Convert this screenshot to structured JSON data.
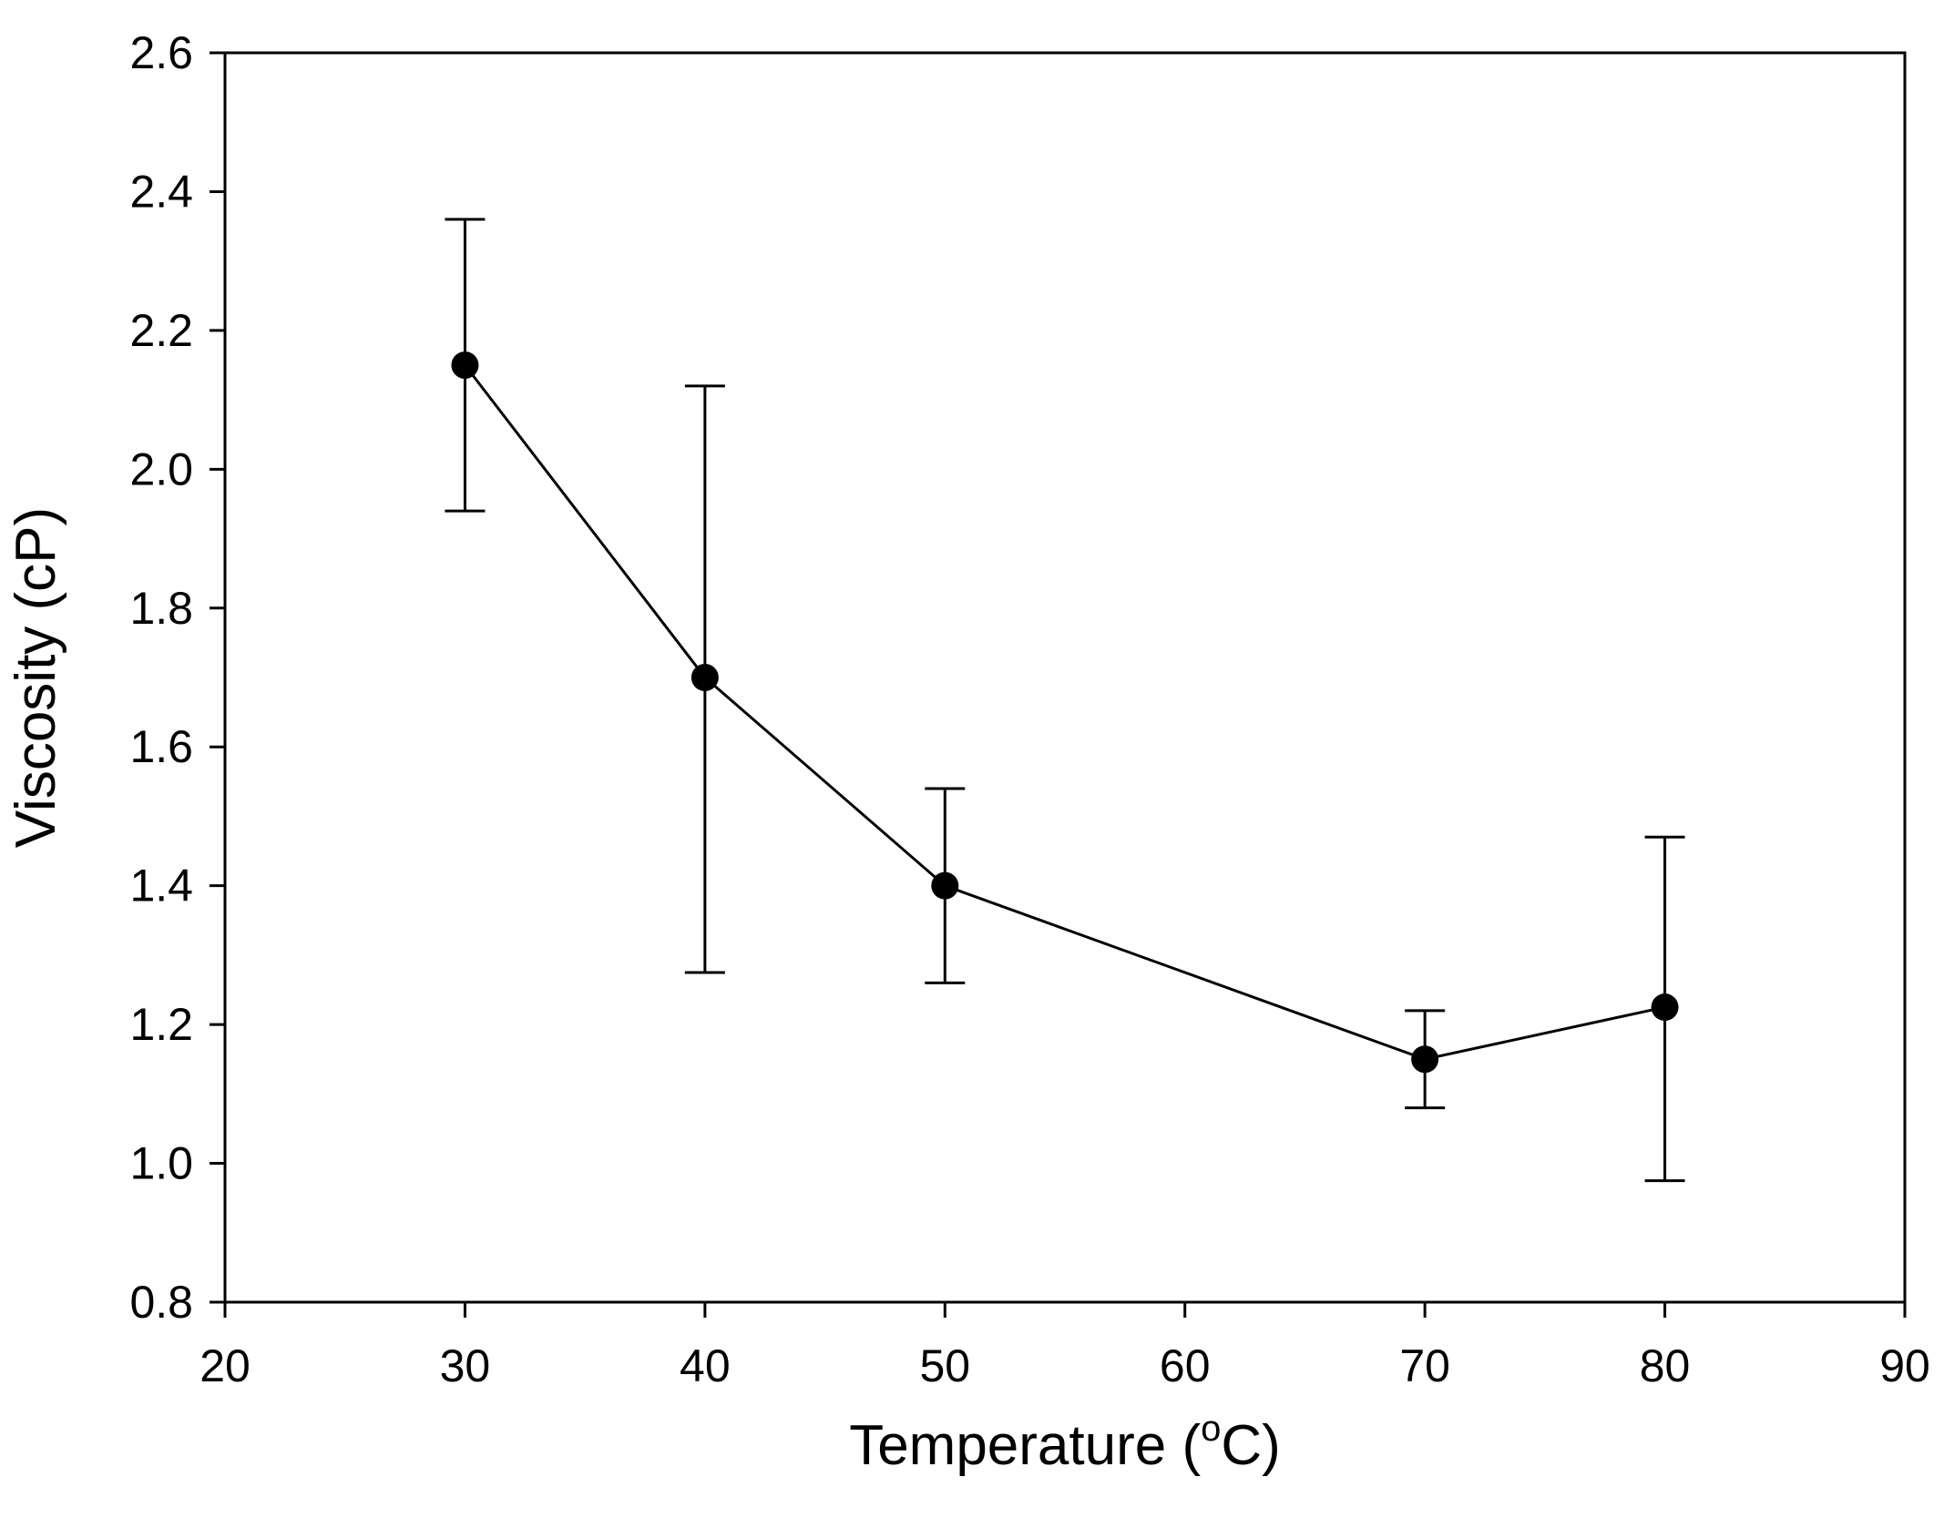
{
  "chart_data": {
    "type": "line",
    "title": "",
    "xlabel": "Temperature (",
    "xlabel_superscript": "o",
    "xlabel_suffix": "C)",
    "ylabel": "Viscosity (cP)",
    "xlim": [
      20,
      90
    ],
    "ylim": [
      0.8,
      2.6
    ],
    "xticks": [
      20,
      30,
      40,
      50,
      60,
      70,
      80,
      90
    ],
    "yticks": [
      0.8,
      1.0,
      1.2,
      1.4,
      1.6,
      1.8,
      2.0,
      2.2,
      2.4,
      2.6
    ],
    "xtick_labels": [
      "20",
      "30",
      "40",
      "50",
      "60",
      "70",
      "80",
      "90"
    ],
    "ytick_labels": [
      "0.8",
      "1.0",
      "1.2",
      "1.4",
      "1.6",
      "1.8",
      "2.0",
      "2.2",
      "2.4",
      "2.6"
    ],
    "grid": false,
    "legend": "none",
    "series": [
      {
        "name": "Viscosity",
        "color": "#000000",
        "marker": "filled-circle",
        "x": [
          30,
          40,
          50,
          70,
          80
        ],
        "y": [
          2.15,
          1.7,
          1.4,
          1.15,
          1.225
        ],
        "error_low": [
          1.94,
          1.275,
          1.26,
          1.08,
          0.975
        ],
        "error_high": [
          2.36,
          2.12,
          1.54,
          1.22,
          1.47
        ]
      }
    ]
  }
}
